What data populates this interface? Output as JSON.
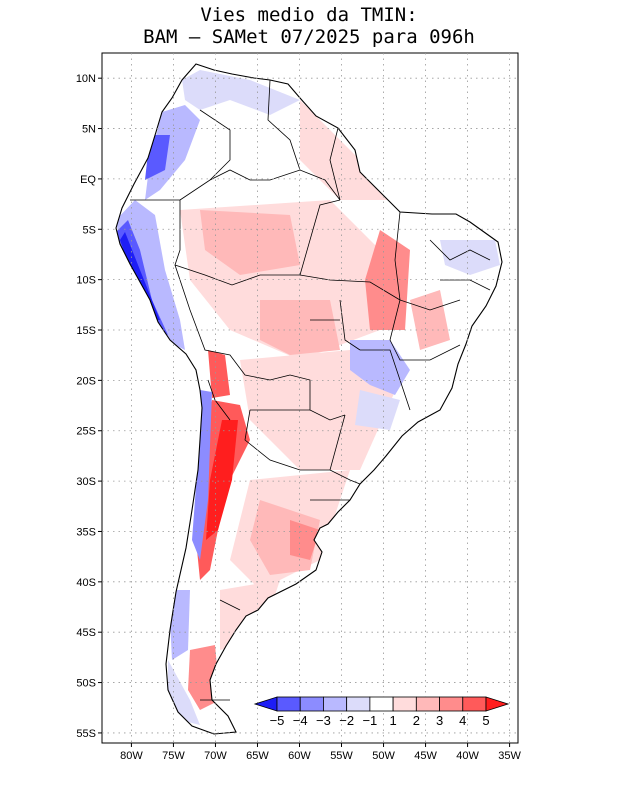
{
  "title": {
    "line1": "Vies medio da TMIN:",
    "line2": "BAM – SAMet 07/2025  para 096h"
  },
  "axes": {
    "lat_labels": [
      "10N",
      "5N",
      "EQ",
      "5S",
      "10S",
      "15S",
      "20S",
      "25S",
      "30S",
      "35S",
      "40S",
      "45S",
      "50S",
      "55S"
    ],
    "lon_labels": [
      "80W",
      "75W",
      "70W",
      "65W",
      "60W",
      "55W",
      "50W",
      "45W",
      "40W",
      "35W"
    ],
    "lat_range": [
      -56,
      12.5
    ],
    "lon_range": [
      -83.5,
      -34
    ]
  },
  "colorbar": {
    "labels": [
      "−5",
      "−4",
      "−3",
      "−2",
      "−1",
      "1",
      "2",
      "3",
      "4",
      "5"
    ],
    "colors": [
      "#1e1ef5",
      "#5a5aff",
      "#8c8cff",
      "#b9b9ff",
      "#dcdcfa",
      "#ffffff",
      "#ffdcdc",
      "#ffb9b9",
      "#ff8c8c",
      "#ff5a5a",
      "#ff1e1e"
    ]
  }
}
